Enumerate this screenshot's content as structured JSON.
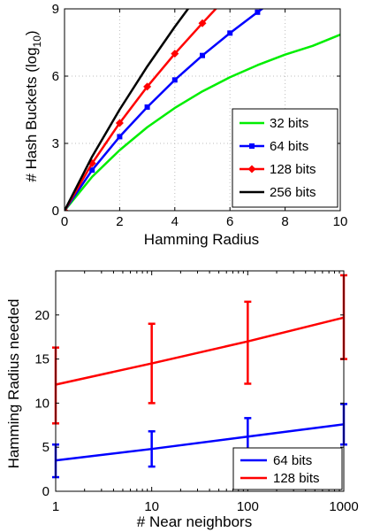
{
  "chart_data": [
    {
      "type": "line",
      "xlabel": "Hamming Radius",
      "ylabel": "# Hash Buckets (log",
      "ylabel_sub": "10",
      "ylabel_close": ")",
      "xlim": [
        0,
        10
      ],
      "ylim": [
        0,
        9
      ],
      "xticks": [
        0,
        2,
        4,
        6,
        8,
        10
      ],
      "yticks": [
        0,
        3,
        6,
        9
      ],
      "grid": true,
      "legend_position": "bottom-right",
      "series": [
        {
          "name": "32 bits",
          "color": "#00ee00",
          "marker": "none",
          "x": [
            0,
            1,
            2,
            3,
            4,
            5,
            6,
            7,
            8,
            9,
            10
          ],
          "y": [
            0,
            1.51,
            2.7,
            3.72,
            4.58,
            5.32,
            5.95,
            6.49,
            6.96,
            7.35,
            7.85
          ]
        },
        {
          "name": "64 bits",
          "color": "#0000ff",
          "marker": "square",
          "x": [
            0,
            1,
            2,
            3,
            4,
            5,
            6,
            7,
            7.5
          ],
          "y": [
            0,
            1.81,
            3.3,
            4.62,
            5.83,
            6.92,
            7.92,
            8.85,
            9.3
          ]
        },
        {
          "name": "128 bits",
          "color": "#ff0000",
          "marker": "diamond",
          "x": [
            0,
            1,
            2,
            3,
            4,
            5,
            5.6
          ],
          "y": [
            0,
            2.11,
            3.91,
            5.53,
            7.0,
            8.36,
            9.15
          ]
        },
        {
          "name": "256 bits",
          "color": "#000000",
          "marker": "none",
          "x": [
            0,
            1,
            2,
            3,
            4,
            4.6
          ],
          "y": [
            0,
            2.41,
            4.51,
            6.43,
            8.2,
            9.2
          ]
        }
      ]
    },
    {
      "type": "line",
      "xlabel": "# Near neighbors",
      "ylabel": "Hamming Radius needed",
      "xscale": "log",
      "xlim": [
        1,
        1000
      ],
      "ylim": [
        0,
        25
      ],
      "xticks": [
        1,
        10,
        100,
        1000
      ],
      "xtick_labels": [
        "1",
        "10",
        "100",
        "1000"
      ],
      "yticks": [
        0,
        5,
        10,
        15,
        20
      ],
      "grid": false,
      "legend_position": "bottom-right",
      "series": [
        {
          "name": "64 bits",
          "color": "#0000ff",
          "x": [
            1,
            10,
            100,
            1000
          ],
          "y": [
            3.5,
            4.8,
            6.2,
            7.6
          ],
          "err_low": [
            1.6,
            2.8,
            4.2,
            5.3
          ],
          "err_high": [
            5.3,
            6.8,
            8.3,
            9.9
          ]
        },
        {
          "name": "128 bits",
          "color": "#ff0000",
          "x": [
            1,
            10,
            100,
            1000
          ],
          "y": [
            12.1,
            14.5,
            17.0,
            19.7
          ],
          "err_low": [
            7.7,
            10.0,
            12.2,
            15.0
          ],
          "err_high": [
            16.3,
            19.0,
            21.5,
            24.5
          ]
        }
      ]
    }
  ]
}
